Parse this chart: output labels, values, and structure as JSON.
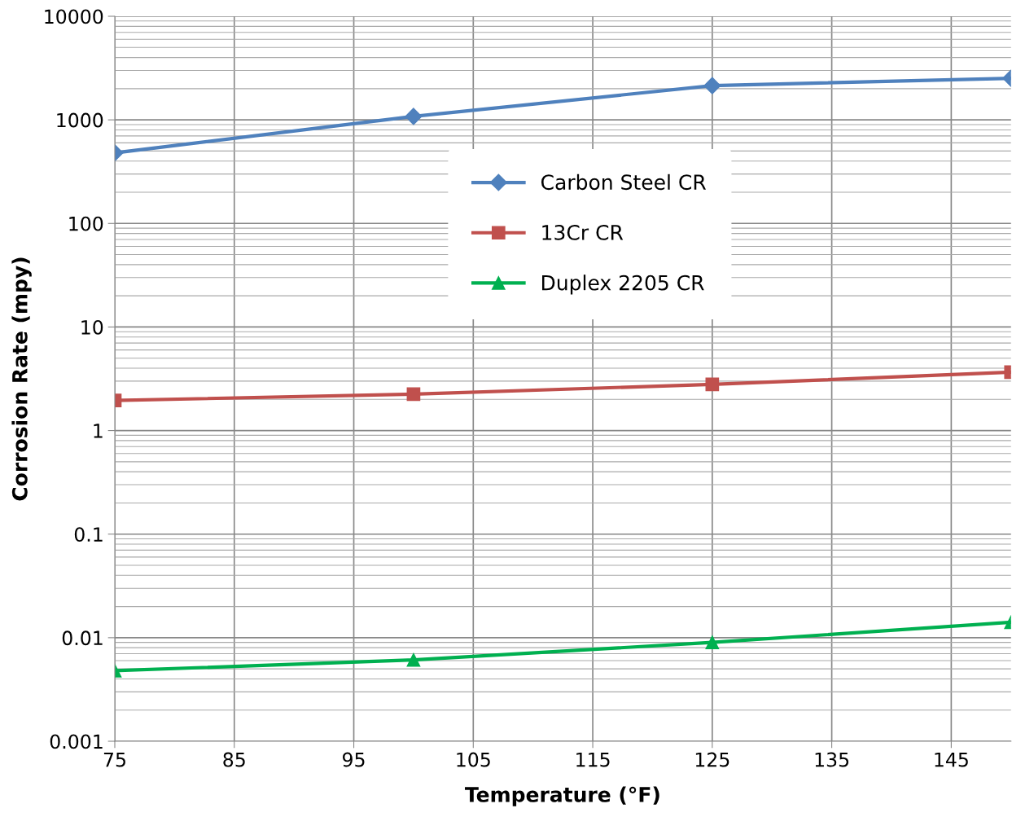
{
  "chart_data": {
    "type": "line",
    "xlabel": "Temperature (°F)",
    "ylabel": "Corrosion Rate (mpy)",
    "x": [
      75,
      100,
      125,
      150
    ],
    "series": [
      {
        "name": "Carbon Steel CR",
        "color": "#4f81bd",
        "marker": "diamond",
        "values": [
          480,
          1080,
          2140,
          2520
        ]
      },
      {
        "name": "13Cr CR",
        "color": "#c0504d",
        "marker": "square",
        "values": [
          1.95,
          2.25,
          2.79,
          3.66
        ]
      },
      {
        "name": "Duplex 2205 CR",
        "color": "#00b050",
        "marker": "triangle",
        "values": [
          0.0048,
          0.0061,
          0.009,
          0.0141
        ]
      }
    ],
    "log": "y",
    "xlim": [
      75,
      150
    ],
    "xticks": [
      75,
      85,
      95,
      105,
      115,
      125,
      135,
      145
    ],
    "ylim": [
      0.001,
      10000
    ],
    "yticks": [
      0.001,
      0.01,
      0.1,
      1,
      10,
      100,
      1000,
      10000
    ],
    "grid": true,
    "legend": "top",
    "line_style": "solid"
  }
}
